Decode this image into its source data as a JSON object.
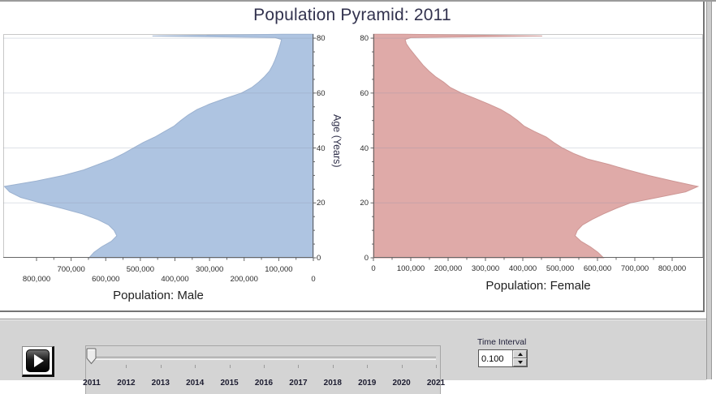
{
  "colors": {
    "male_fill": "#aec4e1",
    "male_stroke": "#9cb2d0",
    "female_fill": "#dfaaa8",
    "female_stroke": "#cd9694",
    "grid": "#d9dde2",
    "axis": "#666666",
    "panel": "#d4d4d4",
    "title_text": "#32324e"
  },
  "chart_data": {
    "type": "area",
    "title": "Population Pyramid: 2011",
    "ylabel": "Age (Years)",
    "grid": "horizontal",
    "ylim": [
      0,
      81.5
    ],
    "xlim": [
      0,
      890000
    ],
    "y_ticks": [
      0,
      20,
      40,
      60,
      80
    ],
    "y_tick_labels": [
      "0",
      "20",
      "40",
      "60",
      "80"
    ],
    "y_minor_step": 5,
    "x_ticks": [
      0,
      100000,
      200000,
      300000,
      400000,
      500000,
      600000,
      700000,
      800000
    ],
    "x_tick_labels": [
      "0",
      "100,000",
      "200,000",
      "300,000",
      "400,000",
      "500,000",
      "600,000",
      "700,000",
      "800,000"
    ],
    "x_minor_step": 50000,
    "age": [
      0,
      2,
      4,
      6,
      8,
      10,
      12,
      14,
      16,
      18,
      20,
      22,
      24,
      26,
      28,
      30,
      32,
      34,
      36,
      38,
      40,
      42,
      44,
      46,
      48,
      50,
      52,
      54,
      56,
      58,
      60,
      62,
      64,
      66,
      68,
      70,
      72,
      74,
      76,
      78,
      79.5,
      80.2,
      80.8,
      81.4
    ],
    "series": [
      {
        "name": "Male",
        "xlabel": "Population: Male",
        "axis_reversed": true,
        "values": [
          648000,
          634000,
          612000,
          584000,
          568000,
          576000,
          592000,
          624000,
          668000,
          726000,
          788000,
          846000,
          878000,
          893000,
          800000,
          722000,
          664000,
          622000,
          580000,
          548000,
          520000,
          492000,
          458000,
          430000,
          402000,
          383000,
          362000,
          336000,
          300000,
          256000,
          208000,
          178000,
          158000,
          141000,
          127000,
          118000,
          111000,
          105000,
          100000,
          95000,
          92000,
          110000,
          465000,
          90000
        ]
      },
      {
        "name": "Female",
        "xlabel": "Population: Female",
        "axis_reversed": false,
        "values": [
          616000,
          601000,
          581000,
          556000,
          540000,
          546000,
          560000,
          586000,
          616000,
          650000,
          688000,
          762000,
          836000,
          869000,
          801000,
          736000,
          681000,
          631000,
          573000,
          536000,
          506000,
          483000,
          463000,
          431000,
          403000,
          386000,
          366000,
          341000,
          309000,
          273000,
          236000,
          206000,
          188000,
          166000,
          149000,
          134000,
          122000,
          110000,
          98000,
          88000,
          85000,
          100000,
          452000,
          83000
        ]
      }
    ]
  },
  "controls": {
    "play_button": {
      "icon": "play-triangle"
    },
    "slider": {
      "years": [
        "2011",
        "2012",
        "2013",
        "2014",
        "2015",
        "2016",
        "2017",
        "2018",
        "2019",
        "2020",
        "2021"
      ],
      "current": "2011"
    },
    "time_interval": {
      "label": "Time Interval",
      "value": "0.100"
    }
  }
}
